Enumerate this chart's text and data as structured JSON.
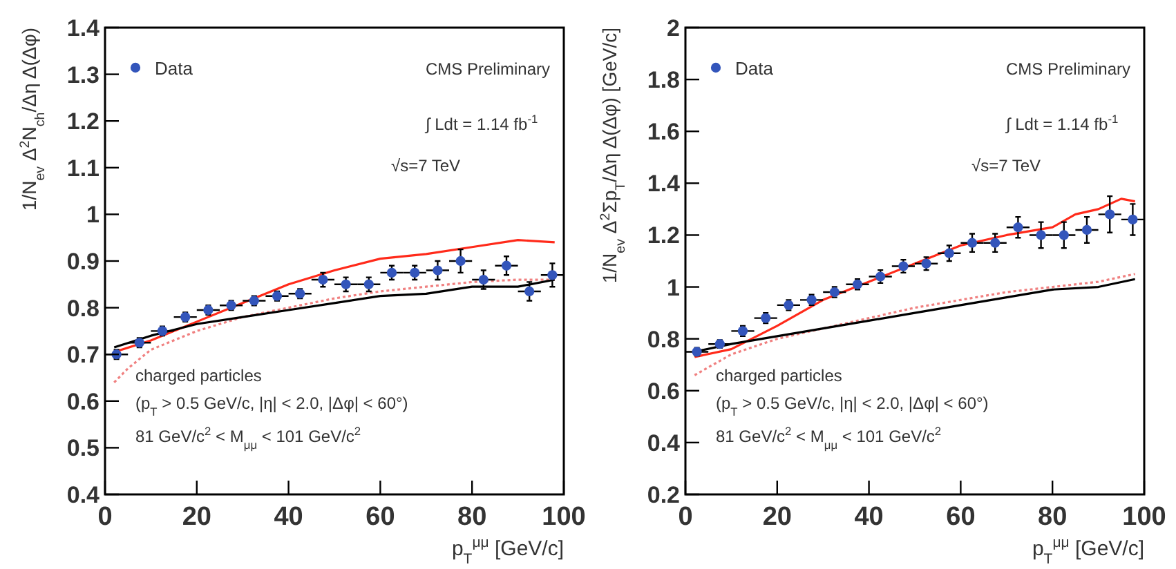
{
  "chart_data": [
    {
      "type": "scatter",
      "xlabel": "p$_{T}$$^{μμ}$ [GeV/c]",
      "ylabel": "1/N$_{ev}$ Δ$^{2}$N$_{ch}$/Δη Δ(Δφ)",
      "xlim": [
        0,
        100
      ],
      "xticks": [
        0,
        20,
        40,
        60,
        80,
        100
      ],
      "ylim": [
        0.4,
        1.4
      ],
      "yticks": [
        0.4,
        0.5,
        0.6,
        0.7,
        0.8,
        0.9,
        1,
        1.1,
        1.2,
        1.3,
        1.4
      ],
      "grid": false,
      "legend": "top left",
      "annotations": [
        "CMS Preliminary",
        "∫ Ldt = 1.14 fb$^{-1}$",
        "√s=7 TeV",
        "charged particles",
        "(p$_{T}$ > 0.5 GeV/c, |η| < 2.0, |Δφ| < 60°)",
        "81 GeV/c$^{2}$ < M$_{μμ}$ < 101 GeV/c$^{2}$"
      ],
      "series": [
        {
          "type": "line",
          "color": "#ff2a1a",
          "line_style": "solid",
          "x": [
            2,
            10,
            20,
            30,
            40,
            50,
            60,
            70,
            80,
            90,
            98
          ],
          "values": [
            0.705,
            0.73,
            0.77,
            0.81,
            0.85,
            0.88,
            0.905,
            0.915,
            0.93,
            0.945,
            0.94
          ]
        },
        {
          "type": "line",
          "color": "#f08080",
          "line_style": "dotted",
          "x": [
            2,
            5,
            10,
            20,
            30,
            40,
            50,
            60,
            70,
            80,
            90,
            98
          ],
          "values": [
            0.64,
            0.67,
            0.71,
            0.75,
            0.78,
            0.8,
            0.82,
            0.835,
            0.845,
            0.855,
            0.86,
            0.86
          ]
        },
        {
          "type": "line",
          "color": "#000000",
          "line_style": "solid",
          "x": [
            2,
            10,
            20,
            30,
            40,
            50,
            60,
            70,
            80,
            90,
            98
          ],
          "values": [
            0.715,
            0.74,
            0.765,
            0.78,
            0.795,
            0.81,
            0.825,
            0.83,
            0.845,
            0.845,
            0.86
          ]
        },
        {
          "name": "Data",
          "color": "#3355bb",
          "marker": "circle",
          "x": [
            2.5,
            7.5,
            12.5,
            17.5,
            22.5,
            27.5,
            32.5,
            37.5,
            42.5,
            47.5,
            52.5,
            57.5,
            62.5,
            67.5,
            72.5,
            77.5,
            82.5,
            87.5,
            92.5,
            97.5
          ],
          "values": [
            0.7,
            0.725,
            0.75,
            0.78,
            0.795,
            0.805,
            0.815,
            0.825,
            0.83,
            0.86,
            0.85,
            0.85,
            0.875,
            0.875,
            0.88,
            0.9,
            0.86,
            0.89,
            0.835,
            0.87
          ],
          "errors": [
            0.01,
            0.01,
            0.01,
            0.01,
            0.01,
            0.01,
            0.01,
            0.01,
            0.01,
            0.015,
            0.015,
            0.015,
            0.015,
            0.015,
            0.02,
            0.025,
            0.02,
            0.02,
            0.02,
            0.025
          ],
          "xerrors": [
            2.5,
            2.5,
            2.5,
            2.5,
            2.5,
            2.5,
            2.5,
            2.5,
            2.5,
            2.5,
            2.5,
            2.5,
            2.5,
            2.5,
            2.5,
            2.5,
            2.5,
            2.5,
            2.5,
            2.5
          ]
        }
      ]
    },
    {
      "type": "scatter",
      "xlabel": "p$_{T}$$^{μμ}$ [GeV/c]",
      "ylabel": "1/N$_{ev}$ Δ$^{2}$Σp$_{T}$/Δη Δ(Δφ) [GeV/c]",
      "xlim": [
        0,
        100
      ],
      "xticks": [
        0,
        20,
        40,
        60,
        80,
        100
      ],
      "ylim": [
        0.2,
        2
      ],
      "yticks": [
        0.2,
        0.4,
        0.6,
        0.8,
        1,
        1.2,
        1.4,
        1.6,
        1.8,
        2
      ],
      "grid": false,
      "legend": "top left",
      "annotations": [
        "CMS Preliminary",
        "∫ Ldt = 1.14 fb$^{-1}$",
        "√s=7 TeV",
        "charged particles",
        "(p$_{T}$ > 0.5 GeV/c, |η| < 2.0, |Δφ| < 60°)",
        "81 GeV/c$^{2}$ < M$_{μμ}$ < 101 GeV/c$^{2}$"
      ],
      "series": [
        {
          "type": "line",
          "color": "#ff2a1a",
          "line_style": "solid",
          "x": [
            2,
            10,
            20,
            30,
            40,
            50,
            60,
            70,
            80,
            85,
            90,
            95,
            98
          ],
          "values": [
            0.73,
            0.76,
            0.85,
            0.95,
            1.02,
            1.09,
            1.16,
            1.2,
            1.23,
            1.28,
            1.3,
            1.34,
            1.33
          ]
        },
        {
          "type": "line",
          "color": "#f08080",
          "line_style": "dotted",
          "x": [
            2,
            10,
            20,
            30,
            40,
            50,
            60,
            70,
            80,
            90,
            98
          ],
          "values": [
            0.66,
            0.74,
            0.8,
            0.84,
            0.88,
            0.92,
            0.95,
            0.98,
            1,
            1.02,
            1.05
          ]
        },
        {
          "type": "line",
          "color": "#000000",
          "line_style": "solid",
          "x": [
            2,
            10,
            20,
            30,
            40,
            50,
            60,
            70,
            80,
            90,
            98
          ],
          "values": [
            0.75,
            0.78,
            0.81,
            0.84,
            0.87,
            0.9,
            0.93,
            0.96,
            0.99,
            1,
            1.03
          ]
        },
        {
          "name": "Data",
          "color": "#3355bb",
          "marker": "circle",
          "x": [
            2.5,
            7.5,
            12.5,
            17.5,
            22.5,
            27.5,
            32.5,
            37.5,
            42.5,
            47.5,
            52.5,
            57.5,
            62.5,
            67.5,
            72.5,
            77.5,
            82.5,
            87.5,
            92.5,
            97.5
          ],
          "values": [
            0.75,
            0.78,
            0.83,
            0.88,
            0.93,
            0.95,
            0.98,
            1.01,
            1.04,
            1.08,
            1.09,
            1.13,
            1.17,
            1.17,
            1.23,
            1.2,
            1.2,
            1.22,
            1.28,
            1.26
          ],
          "errors": [
            0.015,
            0.015,
            0.02,
            0.02,
            0.02,
            0.02,
            0.02,
            0.02,
            0.025,
            0.025,
            0.025,
            0.03,
            0.035,
            0.035,
            0.04,
            0.05,
            0.05,
            0.05,
            0.07,
            0.06
          ],
          "xerrors": [
            2.5,
            2.5,
            2.5,
            2.5,
            2.5,
            2.5,
            2.5,
            2.5,
            2.5,
            2.5,
            2.5,
            2.5,
            2.5,
            2.5,
            2.5,
            2.5,
            2.5,
            2.5,
            2.5,
            2.5
          ]
        }
      ]
    }
  ]
}
